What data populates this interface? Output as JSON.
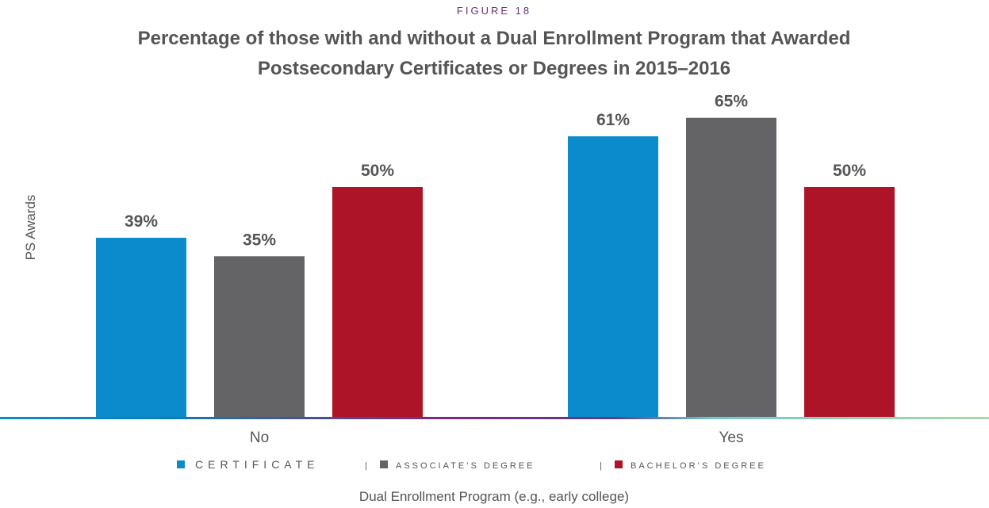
{
  "figure_label": "FIGURE 18",
  "colors": {
    "certificate": "#0b8bcc",
    "associate": "#646466",
    "bachelor": "#ad1427",
    "figure_label": "#6b2f7a",
    "title": "#555555",
    "axis_text": "#555555"
  },
  "chart_data": {
    "type": "bar",
    "title": "Percentage of those with and without a Dual Enrollment Program that Awarded",
    "subtitle": "Postsecondary Certificates or Degrees in 2015–2016",
    "ylabel": "PS Awards",
    "xlabel": "Dual Enrollment Program (e.g., early college)",
    "ylim": [
      0,
      70
    ],
    "grid": false,
    "legend_position": "bottom",
    "categories": [
      "No",
      "Yes"
    ],
    "series": [
      {
        "name": "CERTIFICATE",
        "values": [
          39,
          61
        ],
        "labels": [
          "39%",
          "61%"
        ],
        "color_key": "certificate"
      },
      {
        "name": "ASSOCIATE’S DEGREE",
        "values": [
          35,
          65
        ],
        "labels": [
          "35%",
          "65%"
        ],
        "color_key": "associate"
      },
      {
        "name": "BACHELOR’S DEGREE",
        "values": [
          50,
          50
        ],
        "labels": [
          "50%",
          "50%"
        ],
        "color_key": "bachelor"
      }
    ],
    "legend_separator": "|"
  }
}
